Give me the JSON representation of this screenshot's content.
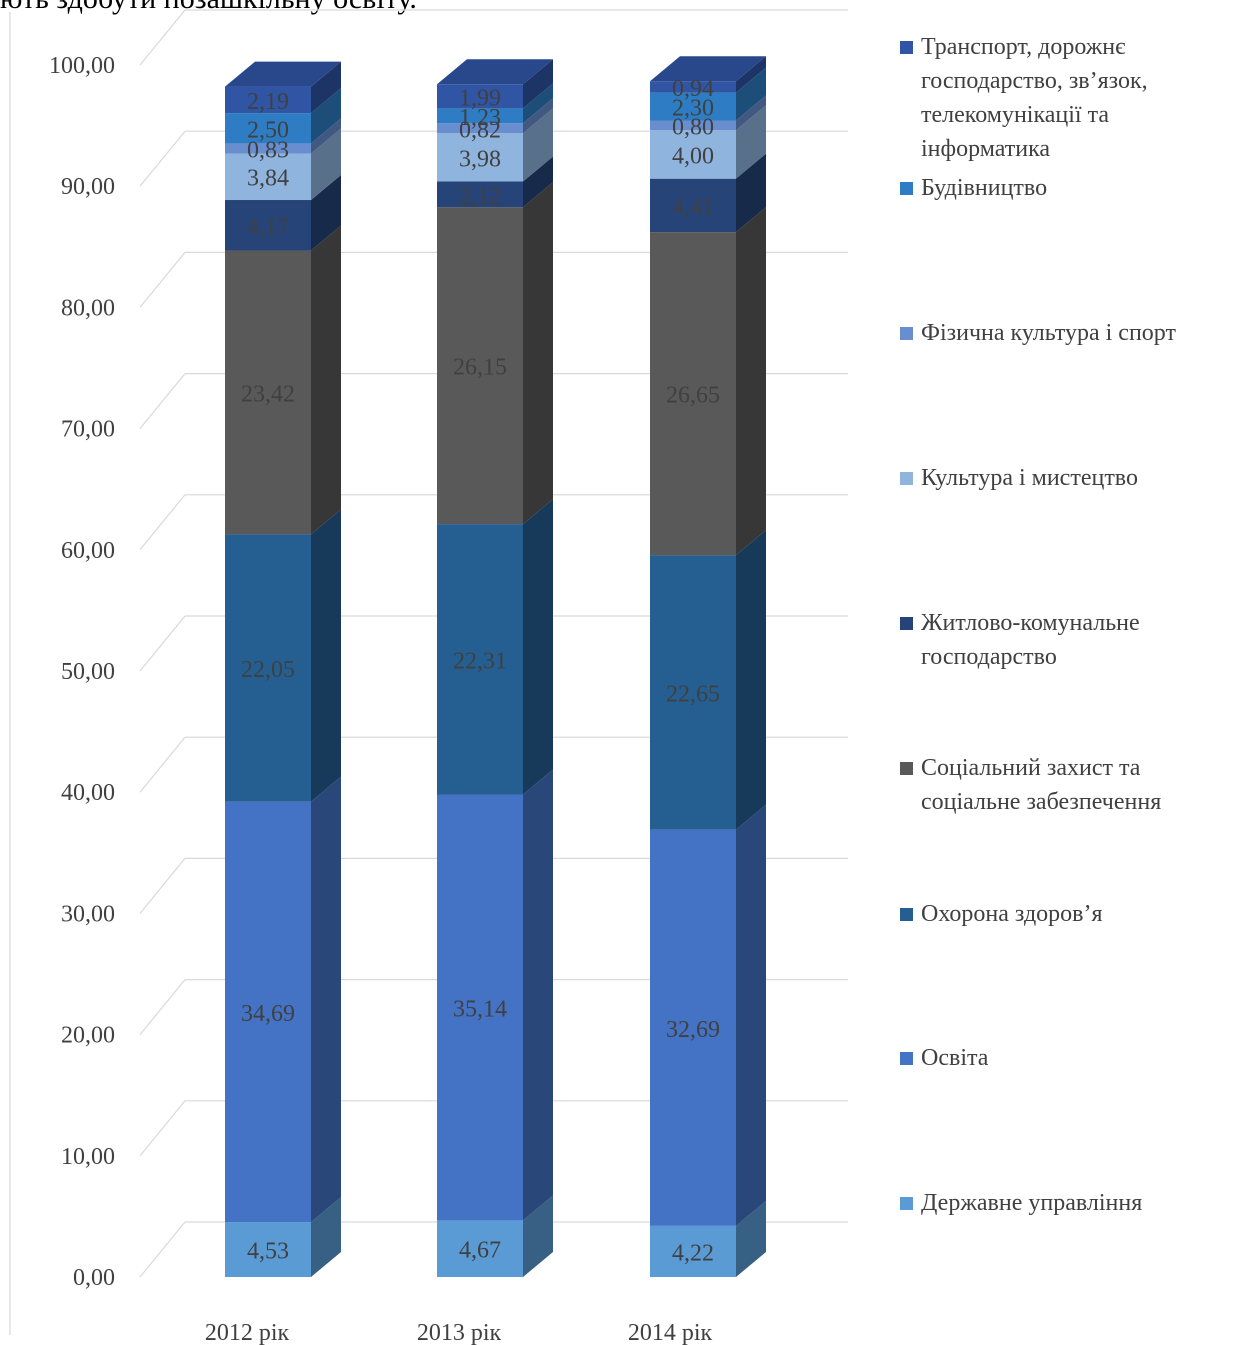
{
  "top_text": "ють здобути позашкільну освіту.",
  "chart_data": {
    "type": "bar",
    "stacked": true,
    "style": "3d-column",
    "categories": [
      "2012 рік",
      "2013 рік",
      "2014 рік"
    ],
    "ylim": [
      0,
      100
    ],
    "yticks": [
      "0,00",
      "10,00",
      "20,00",
      "30,00",
      "40,00",
      "50,00",
      "60,00",
      "70,00",
      "80,00",
      "90,00",
      "100,00"
    ],
    "grid": true,
    "legend_position": "right",
    "series": [
      {
        "name": "Державне управління",
        "values": [
          4.53,
          4.67,
          4.22
        ],
        "labels": [
          "4,53",
          "4,67",
          "4,22"
        ],
        "color": "#5b9bd5",
        "label_color": "#404040"
      },
      {
        "name": "Освіта",
        "values": [
          34.69,
          35.14,
          32.69
        ],
        "labels": [
          "34,69",
          "35,14",
          "32,69"
        ],
        "color": "#4472c4",
        "label_color": "#404040"
      },
      {
        "name": "Охорона здоров’я",
        "values": [
          22.05,
          22.31,
          22.65
        ],
        "labels": [
          "22,05",
          "22,31",
          "22,65"
        ],
        "color": "#255e91",
        "label_color": "#404040"
      },
      {
        "name": "Соціальний захист та\nсоціальне забезпечення",
        "values": [
          23.42,
          26.15,
          26.65
        ],
        "labels": [
          "23,42",
          "26,15",
          "26,65"
        ],
        "color": "#595959",
        "label_color": "#404040"
      },
      {
        "name": "Житлово-комунальне\nгосподарство",
        "values": [
          4.17,
          2.12,
          4.41
        ],
        "labels": [
          "4,17",
          "2,12",
          "4,41"
        ],
        "color": "#264478",
        "label_color": "#404040"
      },
      {
        "name": "Культура і мистецтво",
        "values": [
          3.84,
          3.98,
          4.0
        ],
        "labels": [
          "3,84",
          "3,98",
          "4,00"
        ],
        "color": "#8fb4de",
        "label_color": "#404040"
      },
      {
        "name": "Фізична культура і спорт",
        "values": [
          0.83,
          0.82,
          0.8
        ],
        "labels": [
          "0,83",
          "0,82",
          "0,80"
        ],
        "color": "#698ed0",
        "label_color": "#404040"
      },
      {
        "name": "Будівництво",
        "values": [
          2.5,
          1.23,
          2.3
        ],
        "labels": [
          "2,50",
          "1,23",
          "2,30"
        ],
        "color": "#2e7dc4",
        "label_color": "#404040"
      },
      {
        "name": "Транспорт, дорожнє\nгосподарство, зв’язок,\nтелекомунікації та\nінформатика",
        "values": [
          2.19,
          1.99,
          0.94
        ],
        "labels": [
          "2,19",
          "1,99",
          "0,94"
        ],
        "color": "#2f55a4",
        "label_color": "#404040"
      }
    ]
  }
}
